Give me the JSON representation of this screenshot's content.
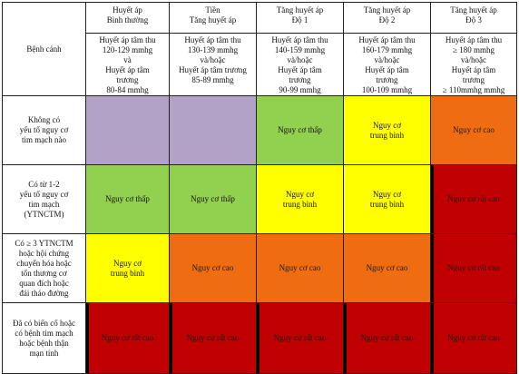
{
  "header": {
    "corner": "Bệnh cảnh",
    "columns": [
      {
        "title": "Huyết áp\nBình thường",
        "range": "Huyết áp tâm thu\n120-129 mmhg\nvà\nHuyết áp tâm\ntrương\n80-84 mmhg"
      },
      {
        "title": "Tiền\nTăng huyết áp",
        "range": "Huyết áp tâm thu\n130-139 mmhg\nvà/hoặc\nHuyết áp tâm trương\n85-89 mmhg"
      },
      {
        "title": "Tăng huyết áp\nĐộ 1",
        "range": "Huyết áp tâm thu\n140-159 mmhg\nvà/hoặc\nHuyết áp tâm\ntrương\n90-99 mmhg"
      },
      {
        "title": "Tăng huyết áp\nĐộ 2",
        "range": "Huyết áp tâm thu\n160-179 mmhg\nvà/hoặc\nHuyết áp tâm\ntrương\n100-109 mmhg"
      },
      {
        "title": "Tăng huyết áp\nĐộ 3",
        "range": "Huyết áp tâm thu\n≥ 180 mmhg\nvà/hoặc\nHuyết áp tâm\ntrương\n≥ 110mmhg mmhg"
      }
    ]
  },
  "rows": [
    {
      "label": "Không có\nyếu tố nguy cơ\ntim mạch nào",
      "cells": [
        "",
        "",
        "Nguy cơ thấp",
        "Nguy cơ\ntrung bình",
        "Nguy cơ cao"
      ]
    },
    {
      "label": "Có từ 1-2\nyếu tố nguy cơ\ntim mạch\n(YTNCTM)",
      "cells": [
        "Nguy cơ thấp",
        "Nguy cơ thấp",
        "Nguy cơ\ntrung bình",
        "Nguy cơ\ntrung bình",
        "Nguy cơ rất cao"
      ]
    },
    {
      "label": "Có ≥ 3 YTNCTM\nhoặc hội chứng\nchuyển hóa hoặc\ntổn thương cơ\nquan đích hoặc\nđái tháo đường",
      "cells": [
        "Nguy cơ\ntrung bình",
        "Nguy cơ cao",
        "Nguy cơ cao",
        "Nguy cơ cao",
        "Nguy cơ rất cao"
      ]
    },
    {
      "label": "Đã có biến cố hoặc\ncó bệnh tim mạch\nhoặc bệnh thận\nmạn tính",
      "cells": [
        "Nguy cơ rất cao",
        "Nguy cơ rất cao",
        "Nguy cơ rất cao",
        "Nguy cơ rất cao",
        "Nguy cơ rất cao"
      ]
    }
  ],
  "colors": {
    "none": "#b3a2c7",
    "low": "#92d050",
    "medium": "#ffff00",
    "high": "#f06c10",
    "very_high": "#c00000"
  }
}
